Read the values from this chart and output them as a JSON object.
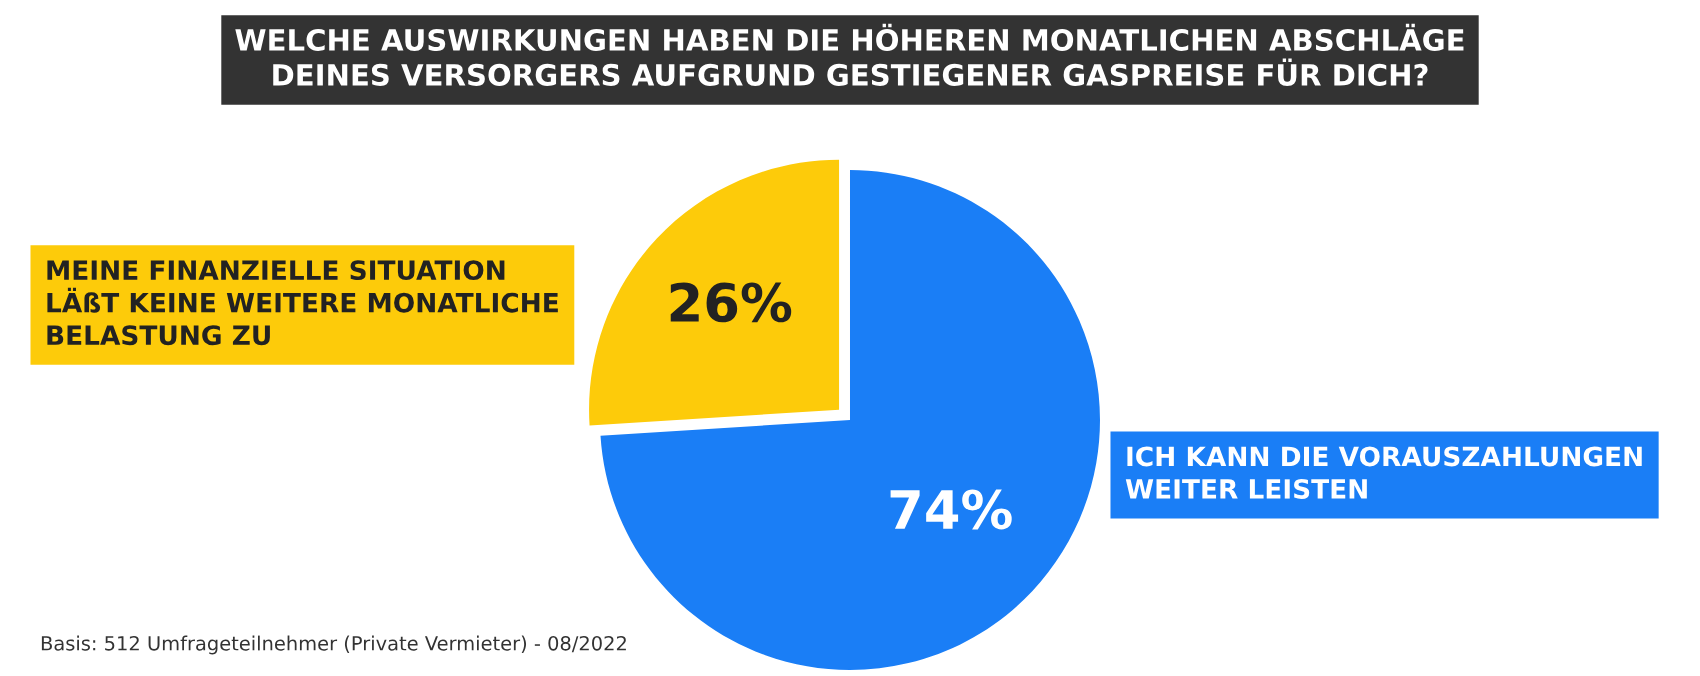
{
  "chart_data": {
    "type": "pie",
    "title": "WELCHE AUSWIRKUNGEN HABEN DIE HÖHEREN MONATLICHEN ABSCHLÄGE\nDEINES VERSORGERS AUFGRUND GESTIEGENER GASPREISE FÜR DICH?",
    "categories": [
      "MEINE FINANZIELLE SITUATION\nLÄßT KEINE WEITERE MONATLICHE\nBELASTUNG ZU",
      "ICH KANN DIE VORAUSZAHLUNGEN\nWEITER LEISTEN"
    ],
    "values": [
      26,
      74
    ],
    "colors": [
      "#fdcb0a",
      "#1a7ef6"
    ],
    "value_labels": [
      "26%",
      "74%"
    ],
    "annotations": [
      "Basis: 512 Umfrageteilnehmer (Private Vermieter) - 08/2022"
    ]
  }
}
